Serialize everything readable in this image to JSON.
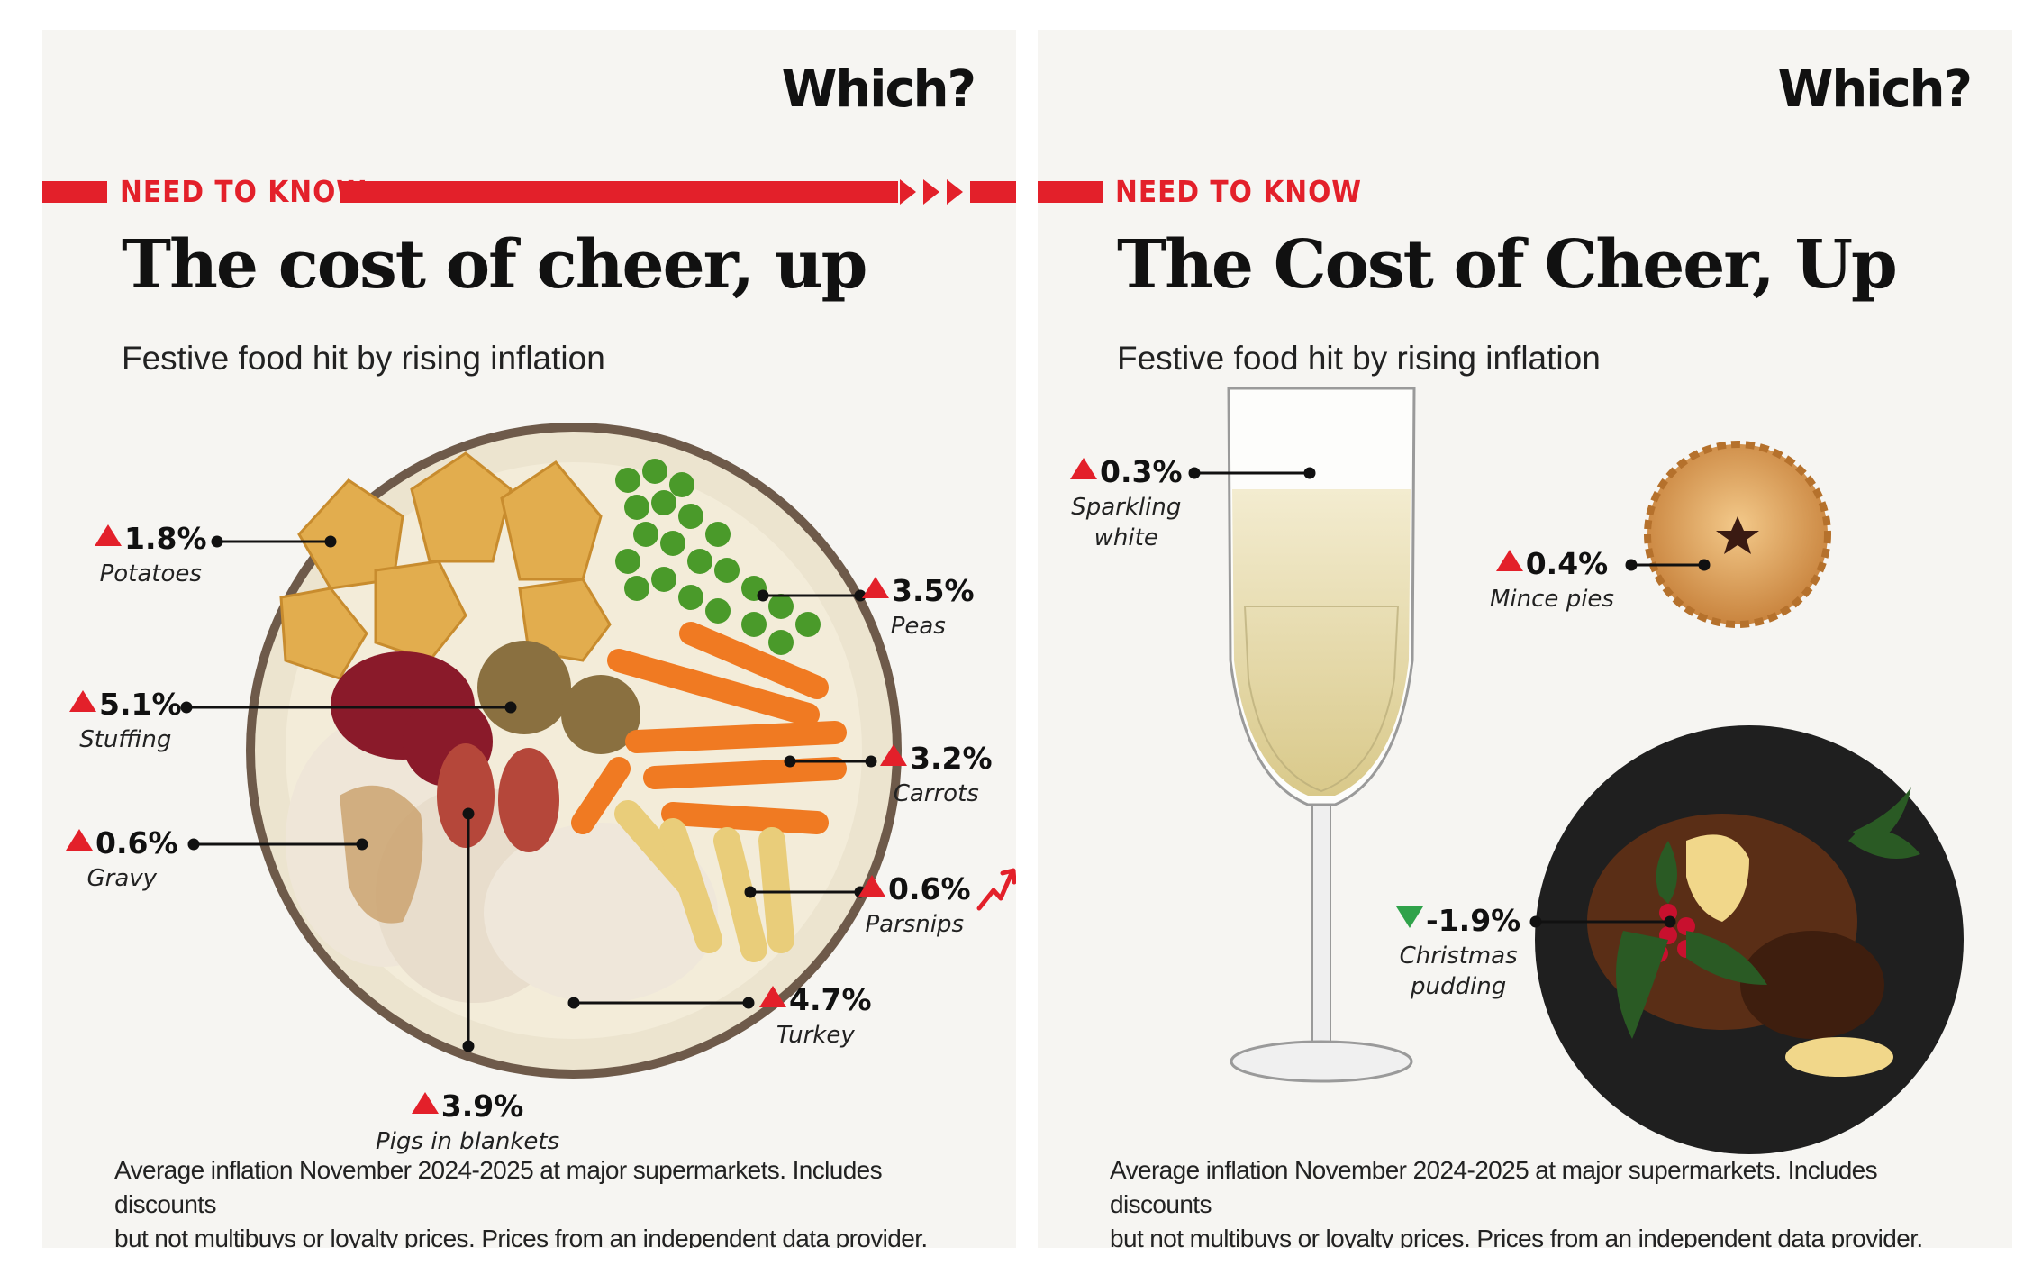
{
  "panels": [
    {
      "logo": "Which?",
      "tag": "NEED TO KNOW",
      "title": "The cost of cheer, up",
      "subtitle": "Festive food hit by rising inflation",
      "footnote_line1": "Average inflation November 2024-2025 at major supermarkets. Includes discounts",
      "footnote_line2": "but not multibuys or loyalty prices. Prices from an independent data provider."
    },
    {
      "logo": "Which?",
      "tag": "NEED TO KNOW",
      "title": "The Cost of Cheer, Up",
      "subtitle": "Festive food hit by rising inflation",
      "footnote_line1": "Average inflation November 2024-2025 at major supermarkets. Includes discounts",
      "footnote_line2": "but not multibuys or loyalty prices. Prices from an independent data provider."
    }
  ],
  "colors": {
    "accent": "#e3202a",
    "up": "#e3202a",
    "down": "#2fa24a",
    "panel_bg": "#f6f5f2"
  },
  "chart_data": [
    {
      "type": "table",
      "title": "The cost of cheer, up",
      "unit": "%",
      "items": [
        {
          "name": "Potatoes",
          "change": 1.8,
          "label": "1.8%",
          "direction": "up"
        },
        {
          "name": "Peas",
          "change": 3.5,
          "label": "3.5%",
          "direction": "up"
        },
        {
          "name": "Stuffing",
          "change": 5.1,
          "label": "5.1%",
          "direction": "up"
        },
        {
          "name": "Carrots",
          "change": 3.2,
          "label": "3.2%",
          "direction": "up"
        },
        {
          "name": "Gravy",
          "change": 0.6,
          "label": "0.6%",
          "direction": "up"
        },
        {
          "name": "Parsnips",
          "change": 0.6,
          "label": "0.6%",
          "direction": "up"
        },
        {
          "name": "Turkey",
          "change": 4.7,
          "label": "4.7%",
          "direction": "up"
        },
        {
          "name": "Pigs in blankets",
          "change": 3.9,
          "label": "3.9%",
          "direction": "up"
        }
      ]
    },
    {
      "type": "table",
      "title": "The Cost of Cheer, Up",
      "unit": "%",
      "items": [
        {
          "name_line1": "Sparkling",
          "name_line2": "white",
          "change": 0.3,
          "label": "0.3%",
          "direction": "up"
        },
        {
          "name": "Mince pies",
          "change": 0.4,
          "label": "0.4%",
          "direction": "up"
        },
        {
          "name_line1": "Christmas",
          "name_line2": "pudding",
          "change": -1.9,
          "label": "-1.9%",
          "direction": "down"
        }
      ]
    }
  ]
}
